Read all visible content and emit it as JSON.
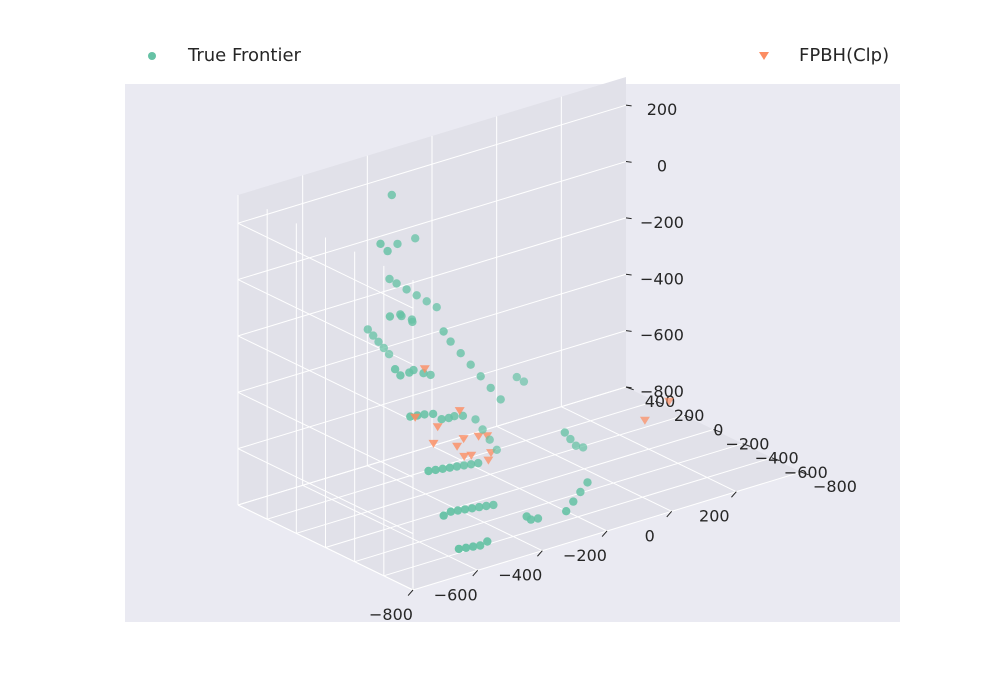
{
  "chart_data": {
    "type": "scatter",
    "projection": "3d",
    "grid": true,
    "legend_placement": "top, spread across the width",
    "colors": {
      "background": "#eaeaf2",
      "pane": "#e1e1e9",
      "grid": "#ffffff",
      "true_frontier": "#66c2a5",
      "fpbh": "#fc8d62"
    },
    "axes": {
      "x": {
        "ticks": [
          "−800",
          "−600",
          "−400",
          "−200",
          "0",
          "200"
        ],
        "range": [
          -800,
          400
        ]
      },
      "y": {
        "ticks": [
          "−800",
          "−600",
          "−400",
          "−200",
          "0",
          "200",
          "400"
        ],
        "range": [
          -800,
          400
        ]
      },
      "z": {
        "ticks": [
          "−800",
          "−600",
          "−400",
          "−200",
          "0",
          "200"
        ],
        "range": [
          -800,
          300
        ]
      }
    },
    "series": [
      {
        "name": "True Frontier",
        "marker": "circle",
        "color": "#66c2a5",
        "points": [
          [
            -640,
            -300,
            420
          ],
          [
            -720,
            -400,
            300
          ],
          [
            -680,
            -360,
            250
          ],
          [
            -600,
            -250,
            220
          ],
          [
            -500,
            -150,
            180
          ],
          [
            -700,
            -420,
            40
          ],
          [
            -650,
            -380,
            20
          ],
          [
            -610,
            -300,
            -20
          ],
          [
            -590,
            -330,
            -40
          ],
          [
            -560,
            -260,
            -60
          ],
          [
            -720,
            -500,
            -120
          ],
          [
            -690,
            -470,
            -160
          ],
          [
            -640,
            -420,
            -180
          ],
          [
            -600,
            -360,
            -200
          ],
          [
            -560,
            -340,
            -230
          ],
          [
            -520,
            -300,
            -260
          ],
          [
            -700,
            -560,
            -280
          ],
          [
            -660,
            -520,
            -300
          ],
          [
            -620,
            -480,
            -320
          ],
          [
            -580,
            -450,
            -340
          ],
          [
            -540,
            -420,
            -380
          ],
          [
            -500,
            -380,
            -400
          ],
          [
            -460,
            -330,
            -420
          ],
          [
            -420,
            -300,
            -440
          ],
          [
            -680,
            -640,
            -460
          ],
          [
            -640,
            -600,
            -480
          ],
          [
            -600,
            -560,
            -500
          ],
          [
            -560,
            -520,
            -520
          ],
          [
            -520,
            -480,
            -540
          ],
          [
            -480,
            -440,
            -560
          ],
          [
            -440,
            -400,
            -580
          ],
          [
            -400,
            -360,
            -600
          ],
          [
            -660,
            -700,
            -610
          ],
          [
            -620,
            -660,
            -620
          ],
          [
            -580,
            -620,
            -640
          ],
          [
            -540,
            -580,
            -660
          ],
          [
            -500,
            -540,
            -680
          ],
          [
            -460,
            -500,
            -700
          ],
          [
            -420,
            -460,
            -720
          ],
          [
            -380,
            -420,
            -740
          ],
          [
            -640,
            -760,
            -720
          ],
          [
            -600,
            -720,
            -740
          ],
          [
            -560,
            -680,
            -760
          ],
          [
            -520,
            -640,
            -780
          ],
          [
            -480,
            -600,
            -790
          ],
          [
            -340,
            -560,
            -760
          ],
          [
            -300,
            -500,
            -800
          ],
          [
            -260,
            -460,
            -820
          ],
          [
            -200,
            -520,
            -800
          ],
          [
            -160,
            -480,
            -790
          ],
          [
            -120,
            -440,
            -780
          ],
          [
            -80,
            -400,
            -770
          ],
          [
            -480,
            -300,
            -120
          ],
          [
            -440,
            -260,
            -180
          ],
          [
            -400,
            -240,
            -240
          ],
          [
            -360,
            -220,
            -300
          ],
          [
            -320,
            -200,
            -360
          ],
          [
            -280,
            -180,
            -420
          ],
          [
            -240,
            -160,
            -480
          ],
          [
            -300,
            -120,
            -540
          ],
          [
            -260,
            -80,
            -600
          ],
          [
            -220,
            -40,
            -660
          ],
          [
            -180,
            0,
            -720
          ],
          [
            -60,
            -200,
            -650
          ],
          [
            -20,
            -150,
            -700
          ],
          [
            20,
            -100,
            -750
          ],
          [
            60,
            -60,
            -780
          ],
          [
            -100,
            40,
            -500
          ],
          [
            -60,
            80,
            -540
          ],
          [
            -620,
            -240,
            100
          ],
          [
            -580,
            -200,
            60
          ],
          [
            -540,
            -180,
            20
          ],
          [
            -500,
            -160,
            -20
          ],
          [
            -460,
            -140,
            -60
          ],
          [
            -420,
            -120,
            -100
          ],
          [
            -660,
            -180,
            -80
          ],
          [
            -630,
            -150,
            -120
          ],
          [
            -600,
            -120,
            -160
          ],
          [
            -570,
            -90,
            -200
          ],
          [
            -540,
            -60,
            -240
          ]
        ]
      },
      {
        "name": "FPBH(Clp)",
        "marker": "triangle-down",
        "color": "#fc8d62",
        "points": [
          [
            -520,
            -260,
            -250
          ],
          [
            -640,
            -460,
            -330
          ],
          [
            -430,
            -300,
            -420
          ],
          [
            -480,
            -260,
            -470
          ],
          [
            -520,
            -320,
            -500
          ],
          [
            -400,
            -260,
            -540
          ],
          [
            -340,
            -230,
            -560
          ],
          [
            -420,
            -260,
            -560
          ],
          [
            -300,
            -200,
            -580
          ],
          [
            -380,
            -220,
            -620
          ],
          [
            -340,
            -180,
            -640
          ],
          [
            -270,
            -160,
            -660
          ],
          [
            -260,
            -120,
            -700
          ],
          [
            260,
            -40,
            -760
          ],
          [
            380,
            60,
            -760
          ]
        ]
      }
    ]
  }
}
